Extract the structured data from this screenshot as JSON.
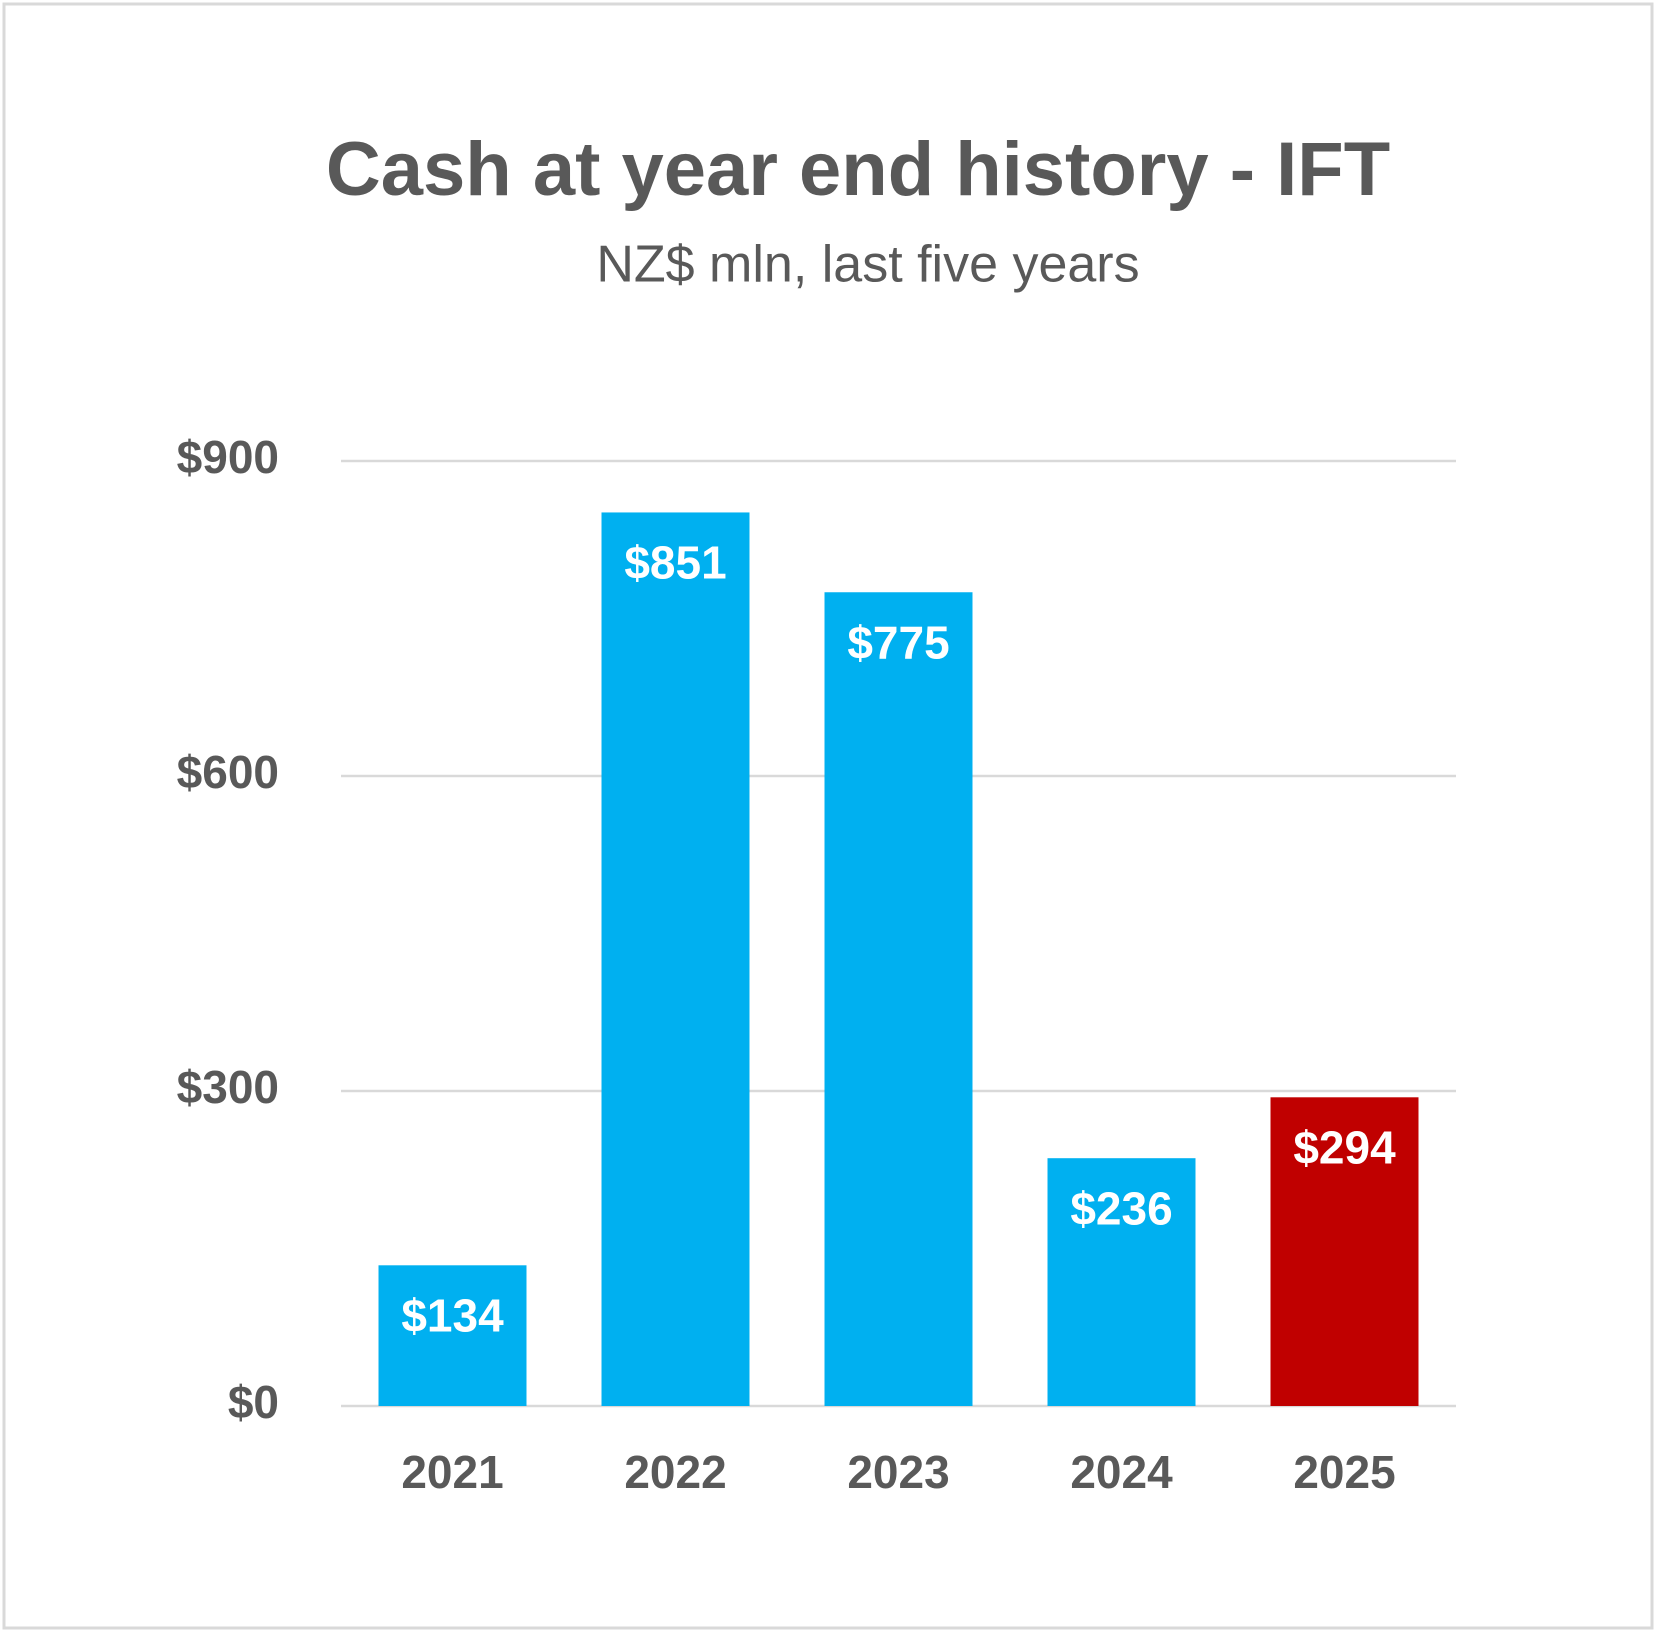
{
  "chart_data": {
    "type": "bar",
    "title": "Cash at year end history - IFT",
    "subtitle": "NZ$ mln, last five years",
    "categories": [
      "2021",
      "2022",
      "2023",
      "2024",
      "2025"
    ],
    "values": [
      134,
      851,
      775,
      236,
      294
    ],
    "value_labels": [
      "$134",
      "$851",
      "$775",
      "$236",
      "$294"
    ],
    "colors": [
      "#00b0f0",
      "#00b0f0",
      "#00b0f0",
      "#00b0f0",
      "#c00000"
    ],
    "ylim": [
      0,
      900
    ],
    "yticks": [
      {
        "value": 0,
        "label": "$0"
      },
      {
        "value": 300,
        "label": "$300"
      },
      {
        "value": 600,
        "label": "$600"
      },
      {
        "value": 900,
        "label": "$900"
      }
    ],
    "grid": true
  }
}
